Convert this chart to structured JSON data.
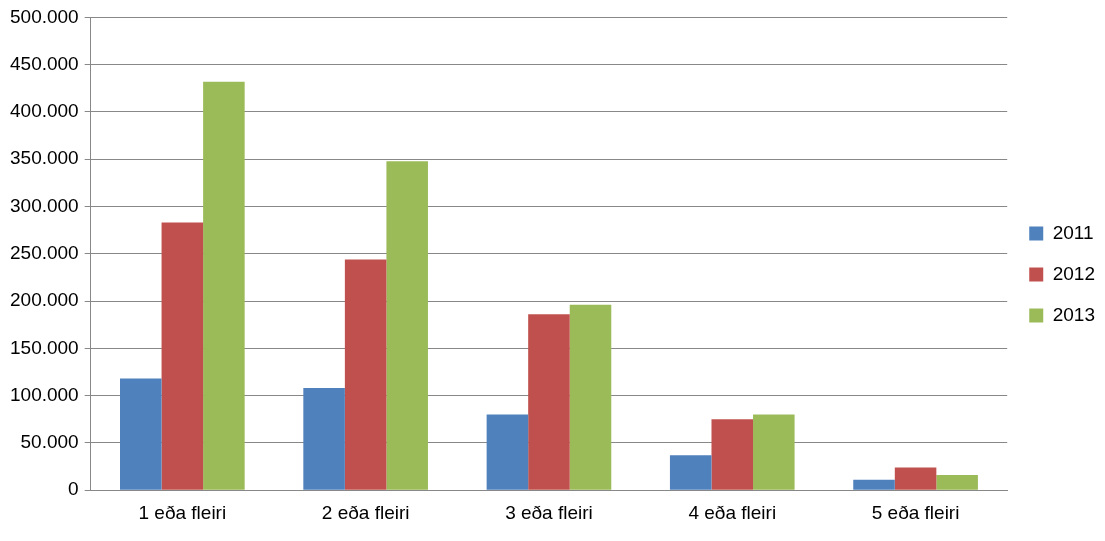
{
  "chart_data": {
    "type": "bar",
    "categories": [
      "1 eða fleiri",
      "2 eða fleiri",
      "3 eða fleiri",
      "4 eða fleiri",
      "5 eða fleiri"
    ],
    "series": [
      {
        "name": "2011",
        "color": "#4f81bd",
        "values": [
          118000,
          108000,
          80000,
          37000,
          11000
        ]
      },
      {
        "name": "2012",
        "color": "#c0504d",
        "values": [
          283000,
          244000,
          186000,
          75000,
          24000
        ]
      },
      {
        "name": "2013",
        "color": "#9bbb59",
        "values": [
          432000,
          348000,
          196000,
          80000,
          16000
        ]
      }
    ],
    "ylim": [
      0,
      500000
    ],
    "yticks": [
      {
        "value": 0,
        "label": "0"
      },
      {
        "value": 50000,
        "label": "50.000"
      },
      {
        "value": 100000,
        "label": "100.000"
      },
      {
        "value": 150000,
        "label": "150.000"
      },
      {
        "value": 200000,
        "label": "200.000"
      },
      {
        "value": 250000,
        "label": "250.000"
      },
      {
        "value": 300000,
        "label": "300.000"
      },
      {
        "value": 350000,
        "label": "350.000"
      },
      {
        "value": 400000,
        "label": "400.000"
      },
      {
        "value": 450000,
        "label": "450.000"
      },
      {
        "value": 500000,
        "label": "500.000"
      }
    ],
    "grid": "y",
    "legend": "right"
  }
}
